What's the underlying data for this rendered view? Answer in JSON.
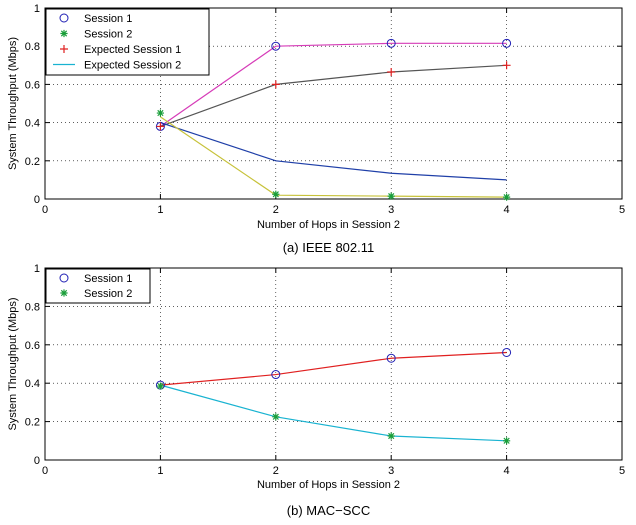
{
  "chart_data": [
    {
      "type": "line",
      "caption": "(a) IEEE 802.11",
      "xlabel": "Number of Hops in Session 2",
      "ylabel": "System Throughput (Mbps)",
      "xlim": [
        0,
        5
      ],
      "ylim": [
        0,
        1
      ],
      "xticks": [
        0,
        1,
        2,
        3,
        4,
        5
      ],
      "yticks": [
        0,
        0.2,
        0.4,
        0.6,
        0.8,
        1
      ],
      "grid": true,
      "legend_position": "top-left",
      "legend": [
        {
          "label": "Session 1",
          "marker": "circle",
          "color": "#1f1fb4"
        },
        {
          "label": "Session 2",
          "marker": "asterisk",
          "color": "#1a9e3a"
        },
        {
          "label": "Expected Session 1",
          "marker": "plus",
          "color": "#e02020"
        },
        {
          "label": "Expected Session 2",
          "marker": "line",
          "color": "#19b3d1"
        }
      ],
      "lines": [
        {
          "color": "#d63cb8",
          "x": [
            1,
            2,
            3,
            4
          ],
          "y": [
            0.38,
            0.8,
            0.815,
            0.815
          ]
        },
        {
          "color": "#555555",
          "x": [
            1,
            2,
            3,
            4
          ],
          "y": [
            0.38,
            0.6,
            0.665,
            0.7
          ]
        },
        {
          "color": "#1f3fa8",
          "x": [
            1,
            2,
            3,
            4
          ],
          "y": [
            0.4,
            0.2,
            0.135,
            0.1
          ]
        },
        {
          "color": "#c7c23a",
          "x": [
            1,
            2,
            3,
            4
          ],
          "y": [
            0.43,
            0.02,
            0.015,
            0.01
          ]
        }
      ],
      "markers": [
        {
          "shape": "circle",
          "color": "#1f1fb4",
          "x": [
            1,
            2,
            3,
            4
          ],
          "y": [
            0.38,
            0.8,
            0.815,
            0.815
          ]
        },
        {
          "shape": "asterisk",
          "color": "#1a9e3a",
          "x": [
            1,
            2,
            3,
            4
          ],
          "y": [
            0.45,
            0.025,
            0.015,
            0.01
          ]
        },
        {
          "shape": "plus",
          "color": "#e02020",
          "x": [
            1,
            2,
            3,
            4
          ],
          "y": [
            0.38,
            0.6,
            0.665,
            0.7
          ]
        }
      ]
    },
    {
      "type": "line",
      "caption": "(b) MAC−SCC",
      "xlabel": "Number of Hops in Session 2",
      "ylabel": "System Throughput (Mbps)",
      "xlim": [
        0,
        5
      ],
      "ylim": [
        0,
        1
      ],
      "xticks": [
        0,
        1,
        2,
        3,
        4,
        5
      ],
      "yticks": [
        0,
        0.2,
        0.4,
        0.6,
        0.8,
        1
      ],
      "grid": true,
      "legend_position": "top-left",
      "legend": [
        {
          "label": "Session 1",
          "marker": "circle",
          "color": "#1f1fb4"
        },
        {
          "label": "Session 2",
          "marker": "asterisk",
          "color": "#1a9e3a"
        }
      ],
      "lines": [
        {
          "color": "#e02020",
          "x": [
            1,
            2,
            3,
            4
          ],
          "y": [
            0.39,
            0.445,
            0.53,
            0.56
          ]
        },
        {
          "color": "#19b3d1",
          "x": [
            1,
            2,
            3,
            4
          ],
          "y": [
            0.39,
            0.225,
            0.125,
            0.1
          ]
        }
      ],
      "markers": [
        {
          "shape": "circle",
          "color": "#1f1fb4",
          "x": [
            1,
            2,
            3,
            4
          ],
          "y": [
            0.39,
            0.445,
            0.53,
            0.56
          ]
        },
        {
          "shape": "asterisk",
          "color": "#1a9e3a",
          "x": [
            1,
            2,
            3,
            4
          ],
          "y": [
            0.385,
            0.225,
            0.125,
            0.1
          ]
        }
      ]
    }
  ]
}
